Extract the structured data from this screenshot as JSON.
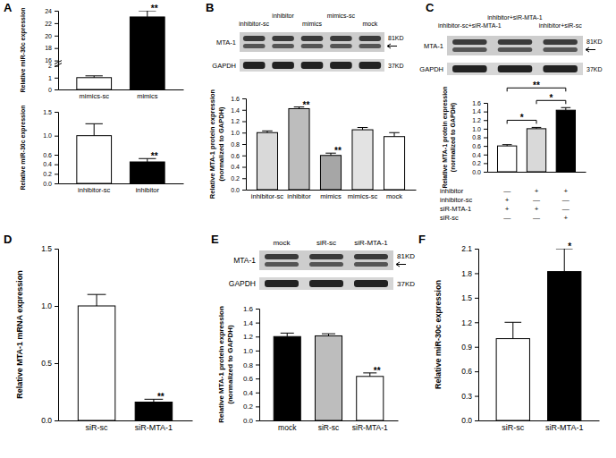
{
  "chart_data": [
    {
      "type": "bar",
      "title": "A",
      "y_label": "Relative miR-30c expression",
      "categories": [
        "mimics-sc",
        "mimics"
      ],
      "values": [
        1.0,
        23.0
      ],
      "errors": [
        0.15,
        1.0
      ],
      "colors": [
        "#ffffff",
        "#000000"
      ],
      "ylim": [
        0,
        24
      ],
      "yticks": [
        0,
        1,
        2,
        16,
        18,
        20,
        22,
        24
      ],
      "annotations": [
        {
          "index": 1,
          "text": "**"
        }
      ]
    },
    {
      "type": "bar",
      "y_label": "Relative miR-30c expression",
      "categories": [
        "inhibitor-sc",
        "inhibitor"
      ],
      "values": [
        1.0,
        0.45
      ],
      "errors": [
        0.25,
        0.07
      ],
      "colors": [
        "#ffffff",
        "#000000"
      ],
      "ylim": [
        0,
        1.5
      ],
      "yticks": [
        {
          "value": 0,
          "label": "0.0"
        },
        0.2,
        0.4,
        0.6,
        {
          "value": 1,
          "label": "1.0"
        },
        1.5
      ],
      "annotations": [
        {
          "index": 1,
          "text": "**"
        }
      ]
    },
    {
      "type": "blot",
      "title": "B",
      "lanes": [
        "inhibitor-sc",
        "inhibitor",
        "mimics",
        "mimics-sc",
        "mock"
      ],
      "bands": [
        {
          "name": "MTA-1",
          "size": "81KD"
        },
        {
          "name": "GAPDH",
          "size": "37KD"
        }
      ]
    },
    {
      "type": "bar",
      "y_label": [
        "Relative MTA-1 protein expression",
        "(normalized to GAPDH)"
      ],
      "categories": [
        "inhibitor-sc",
        "inhibitor",
        "mimics",
        "mimics-sc",
        "mock"
      ],
      "values": [
        1.0,
        1.42,
        0.6,
        1.05,
        0.93
      ],
      "errors": [
        0.03,
        0.03,
        0.04,
        0.04,
        0.07
      ],
      "colors": [
        "#d9d9d9",
        "#bdbdbd",
        "#a6a6a6",
        "#e3e3e3",
        "#ffffff"
      ],
      "ylim": [
        0,
        1.6
      ],
      "yticks": [
        {
          "value": 0,
          "label": "0.0"
        },
        0.2,
        0.4,
        0.6,
        0.8,
        {
          "value": 1,
          "label": "1.0"
        },
        1.2,
        1.4,
        1.6
      ],
      "annotations": [
        {
          "index": 1,
          "text": "**"
        },
        {
          "index": 2,
          "text": "**"
        }
      ]
    },
    {
      "type": "blot",
      "title": "C",
      "lanes": [
        "inhibitor-sc+siR-MTA-1",
        "inhibitor+siR-MTA-1",
        "inhibitor+siR-sc"
      ],
      "bands": [
        {
          "name": "MTA-1",
          "size": "81KD"
        },
        {
          "name": "GAPDH",
          "size": "37KD"
        }
      ]
    },
    {
      "type": "bar",
      "y_label": [
        "Relative MTA-1 protein expression",
        "(normalized to GAPDH)"
      ],
      "categories": [
        null,
        null,
        null
      ],
      "values": [
        0.6,
        1.0,
        1.43
      ],
      "errors": [
        0.03,
        0.03,
        0.06
      ],
      "colors": [
        "#ffffff",
        "#d9d9d9",
        "#000000"
      ],
      "ylim": [
        0,
        1.6
      ],
      "yticks": [
        {
          "value": 0,
          "label": "0.0"
        },
        0.2,
        0.4,
        0.6,
        0.8,
        {
          "value": 1,
          "label": "1.0"
        },
        1.2,
        1.4,
        1.6
      ],
      "annotations": [
        {
          "from": 0,
          "to": 1,
          "text": "*"
        },
        {
          "from": 1,
          "to": 2,
          "text": "*"
        },
        {
          "from": 0,
          "to": 2,
          "text": "**"
        }
      ],
      "table": {
        "rows": [
          "inhibitor",
          "inhibitor-sc",
          "siR-MTA-1",
          "siR-sc"
        ],
        "cells": [
          [
            "—",
            "+",
            "+"
          ],
          [
            "+",
            "—",
            "—"
          ],
          [
            "+",
            "+",
            "—"
          ],
          [
            "—",
            "—",
            "+"
          ]
        ]
      }
    },
    {
      "type": "bar",
      "title": "D",
      "y_label": "Relative MTA-1 mRNA expression",
      "categories": [
        "siR-sc",
        "siR-MTA-1"
      ],
      "values": [
        1.0,
        0.16
      ],
      "errors": [
        0.1,
        0.025
      ],
      "colors": [
        "#ffffff",
        "#000000"
      ],
      "ylim": [
        0,
        1.5
      ],
      "yticks": [
        {
          "value": 0,
          "label": "0.0"
        },
        0.5,
        {
          "value": 1,
          "label": "1.0"
        },
        1.5
      ],
      "annotations": [
        {
          "index": 1,
          "text": "**"
        }
      ]
    },
    {
      "type": "blot",
      "title": "E",
      "lanes": [
        "mock",
        "siR-sc",
        "siR-MTA-1"
      ],
      "bands": [
        {
          "name": "MTA-1",
          "size": "81KD"
        },
        {
          "name": "GAPDH",
          "size": "37KD"
        }
      ]
    },
    {
      "type": "bar",
      "y_label": [
        "Relative MTA-1 protein expression",
        "(normalized to GAPDH)"
      ],
      "categories": [
        "mock",
        "siR-sc",
        "siR-MTA-1"
      ],
      "values": [
        1.2,
        1.21,
        0.63
      ],
      "errors": [
        0.05,
        0.03,
        0.05
      ],
      "colors": [
        "#000000",
        "#bdbdbd",
        "#ffffff"
      ],
      "ylim": [
        0,
        1.6
      ],
      "yticks": [
        {
          "value": 0,
          "label": "0.0"
        },
        0.2,
        0.4,
        0.6,
        0.8,
        {
          "value": 1,
          "label": "1.0"
        },
        1.2,
        1.4,
        1.6
      ],
      "annotations": [
        {
          "index": 2,
          "text": "**"
        }
      ]
    },
    {
      "type": "bar",
      "title": "F",
      "y_label": "Relative miR-30c expression",
      "categories": [
        "siR-sc",
        "siR-MTA-1"
      ],
      "values": [
        1.0,
        1.82
      ],
      "errors": [
        0.2,
        0.28
      ],
      "colors": [
        "#ffffff",
        "#000000"
      ],
      "ylim": [
        0,
        2.1
      ],
      "yticks": [
        {
          "value": 0,
          "label": "0.0"
        },
        0.3,
        0.6,
        0.9,
        1.2,
        1.5,
        1.8,
        2.1
      ],
      "annotations": [
        {
          "index": 1,
          "text": "*"
        }
      ]
    }
  ]
}
